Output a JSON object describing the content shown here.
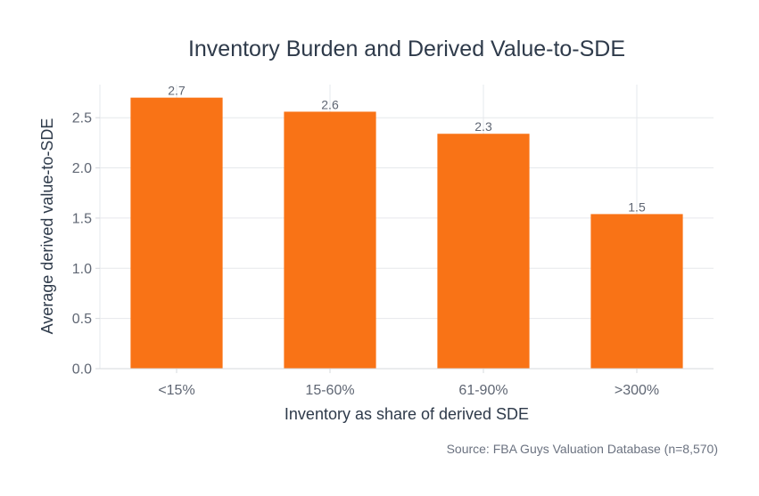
{
  "chart_data": {
    "type": "bar",
    "title": "Inventory Burden and Derived Value-to-SDE",
    "xlabel": "Inventory as share of derived SDE",
    "ylabel": "Average derived value-to-SDE",
    "categories": [
      "<15%",
      "15-60%",
      "61-90%",
      ">300%"
    ],
    "values": [
      2.7,
      2.56,
      2.34,
      1.54
    ],
    "data_labels": [
      "2.7",
      "2.6",
      "2.3",
      "1.5"
    ],
    "ylim": [
      0,
      2.83
    ],
    "yticks": [
      0.0,
      0.5,
      1.0,
      1.5,
      2.0,
      2.5
    ],
    "ytick_labels": [
      "0.0",
      "0.5",
      "1.0",
      "1.5",
      "2.0",
      "2.5"
    ],
    "grid": true,
    "bar_color": "#f97316",
    "source": "Source: FBA Guys Valuation Database (n=8,570)"
  }
}
